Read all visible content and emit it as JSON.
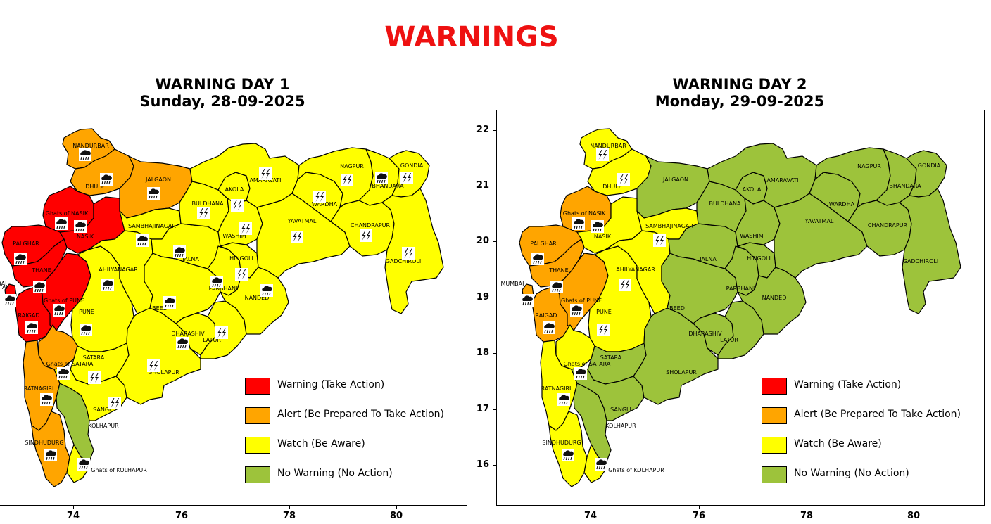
{
  "main_title": "WARNINGS",
  "colors": {
    "title": "#ee1111",
    "warning": "#ff0000",
    "alert": "#ffa500",
    "watch": "#ffff00",
    "no_warning": "#9dc33b"
  },
  "legend": [
    {
      "label": "Warning (Take Action)",
      "color_key": "warning"
    },
    {
      "label": "Alert (Be Prepared To Take Action)",
      "color_key": "alert"
    },
    {
      "label": "Watch (Be Aware)",
      "color_key": "watch"
    },
    {
      "label": "No Warning (No Action)",
      "color_key": "no_warning"
    }
  ],
  "panels": [
    {
      "title_line1": "WARNING DAY 1",
      "title_line2": "Sunday, 28-09-2025",
      "x_ticks": [
        "74",
        "76",
        "78",
        "80"
      ],
      "y_ticks": [],
      "clipped_label": "AI",
      "districts": [
        {
          "name": "NANDURBAR",
          "level": "alert",
          "icon": "rain"
        },
        {
          "name": "DHULE",
          "level": "alert",
          "icon": "rain"
        },
        {
          "name": "JALGAON",
          "level": "alert",
          "icon": "rain"
        },
        {
          "name": "Ghats of NASIK",
          "level": "warning",
          "icon": "rain"
        },
        {
          "name": "NASIK",
          "level": "warning",
          "icon": "rain"
        },
        {
          "name": "PALGHAR",
          "level": "warning",
          "icon": "rain"
        },
        {
          "name": "THANE",
          "level": "warning",
          "icon": "rain"
        },
        {
          "name": "MUMBAI",
          "level": "warning",
          "icon": "rain"
        },
        {
          "name": "RAIGAD",
          "level": "warning",
          "icon": "rain"
        },
        {
          "name": "Ghats of PUNE",
          "level": "warning",
          "icon": "rain"
        },
        {
          "name": "PUNE",
          "level": "watch",
          "icon": "rain"
        },
        {
          "name": "Ghats of SATARA",
          "level": "alert",
          "icon": "rain"
        },
        {
          "name": "SATARA",
          "level": "watch",
          "icon": "thunder"
        },
        {
          "name": "RATNAGIRI",
          "level": "alert",
          "icon": "rain"
        },
        {
          "name": "SINDHUDURG",
          "level": "alert",
          "icon": "rain"
        },
        {
          "name": "KOLHAPUR",
          "level": "no_warning",
          "icon": ""
        },
        {
          "name": "Ghats of KOLHAPUR",
          "level": "watch",
          "icon": "rain"
        },
        {
          "name": "SANGLI",
          "level": "watch",
          "icon": "thunder"
        },
        {
          "name": "SHOLAPUR",
          "level": "watch",
          "icon": "thunder"
        },
        {
          "name": "AHILYANAGAR",
          "level": "watch",
          "icon": "rain"
        },
        {
          "name": "SAMBHAJINAGAR",
          "level": "watch",
          "icon": "rain"
        },
        {
          "name": "BEED",
          "level": "watch",
          "icon": "rain"
        },
        {
          "name": "DHARASHIV",
          "level": "watch",
          "icon": "rain"
        },
        {
          "name": "LATUR",
          "level": "watch",
          "icon": "thunder"
        },
        {
          "name": "JALNA",
          "level": "watch",
          "icon": "rain"
        },
        {
          "name": "PARBHANI",
          "level": "watch",
          "icon": "rain"
        },
        {
          "name": "HINGOLI",
          "level": "watch",
          "icon": "thunder"
        },
        {
          "name": "NANDED",
          "level": "watch",
          "icon": "rain"
        },
        {
          "name": "BULDHANA",
          "level": "watch",
          "icon": "thunder"
        },
        {
          "name": "AKOLA",
          "level": "watch",
          "icon": "thunder"
        },
        {
          "name": "WASHIM",
          "level": "watch",
          "icon": "thunder"
        },
        {
          "name": "AMARAVATI",
          "level": "watch",
          "icon": "thunder"
        },
        {
          "name": "YAVATMAL",
          "level": "watch",
          "icon": "thunder"
        },
        {
          "name": "WARDHA",
          "level": "watch",
          "icon": "thunder"
        },
        {
          "name": "NAGPUR",
          "level": "watch",
          "icon": "thunder"
        },
        {
          "name": "BHANDARA",
          "level": "watch",
          "icon": "rain"
        },
        {
          "name": "GONDIA",
          "level": "watch",
          "icon": "thunder"
        },
        {
          "name": "CHANDRAPUR",
          "level": "watch",
          "icon": "thunder"
        },
        {
          "name": "GADCHIROLI",
          "level": "watch",
          "icon": "thunder"
        }
      ]
    },
    {
      "title_line1": "WARNING DAY 2",
      "title_line2": "Monday, 29-09-2025",
      "x_ticks": [
        "74",
        "76",
        "78",
        "80"
      ],
      "y_ticks": [
        "22",
        "21",
        "20",
        "19",
        "18",
        "17",
        "16"
      ],
      "clipped_label": "",
      "districts": [
        {
          "name": "NANDURBAR",
          "level": "watch",
          "icon": "thunder"
        },
        {
          "name": "DHULE",
          "level": "watch",
          "icon": "thunder"
        },
        {
          "name": "JALGAON",
          "level": "no_warning",
          "icon": ""
        },
        {
          "name": "Ghats of NASIK",
          "level": "alert",
          "icon": "rain"
        },
        {
          "name": "NASIK",
          "level": "watch",
          "icon": "rain"
        },
        {
          "name": "PALGHAR",
          "level": "alert",
          "icon": "rain"
        },
        {
          "name": "THANE",
          "level": "alert",
          "icon": "rain"
        },
        {
          "name": "MUMBAI",
          "level": "alert",
          "icon": "rain"
        },
        {
          "name": "RAIGAD",
          "level": "alert",
          "icon": "rain"
        },
        {
          "name": "Ghats of PUNE",
          "level": "alert",
          "icon": "rain"
        },
        {
          "name": "PUNE",
          "level": "watch",
          "icon": "thunder"
        },
        {
          "name": "Ghats of SATARA",
          "level": "watch",
          "icon": "rain"
        },
        {
          "name": "SATARA",
          "level": "no_warning",
          "icon": ""
        },
        {
          "name": "RATNAGIRI",
          "level": "watch",
          "icon": "rain"
        },
        {
          "name": "SINDHUDURG",
          "level": "watch",
          "icon": "rain"
        },
        {
          "name": "KOLHAPUR",
          "level": "no_warning",
          "icon": ""
        },
        {
          "name": "Ghats of KOLHAPUR",
          "level": "watch",
          "icon": "rain"
        },
        {
          "name": "SANGLI",
          "level": "no_warning",
          "icon": ""
        },
        {
          "name": "SHOLAPUR",
          "level": "no_warning",
          "icon": ""
        },
        {
          "name": "AHILYANAGAR",
          "level": "watch",
          "icon": "thunder"
        },
        {
          "name": "SAMBHAJINAGAR",
          "level": "watch",
          "icon": "thunder"
        },
        {
          "name": "BEED",
          "level": "no_warning",
          "icon": ""
        },
        {
          "name": "DHARASHIV",
          "level": "no_warning",
          "icon": ""
        },
        {
          "name": "LATUR",
          "level": "no_warning",
          "icon": ""
        },
        {
          "name": "JALNA",
          "level": "no_warning",
          "icon": ""
        },
        {
          "name": "PARBHANI",
          "level": "no_warning",
          "icon": ""
        },
        {
          "name": "HINGOLI",
          "level": "no_warning",
          "icon": ""
        },
        {
          "name": "NANDED",
          "level": "no_warning",
          "icon": ""
        },
        {
          "name": "BULDHANA",
          "level": "no_warning",
          "icon": ""
        },
        {
          "name": "AKOLA",
          "level": "no_warning",
          "icon": ""
        },
        {
          "name": "WASHIM",
          "level": "no_warning",
          "icon": ""
        },
        {
          "name": "AMARAVATI",
          "level": "no_warning",
          "icon": ""
        },
        {
          "name": "YAVATMAL",
          "level": "no_warning",
          "icon": ""
        },
        {
          "name": "WARDHA",
          "level": "no_warning",
          "icon": ""
        },
        {
          "name": "NAGPUR",
          "level": "no_warning",
          "icon": ""
        },
        {
          "name": "BHANDARA",
          "level": "no_warning",
          "icon": ""
        },
        {
          "name": "GONDIA",
          "level": "no_warning",
          "icon": ""
        },
        {
          "name": "CHANDRAPUR",
          "level": "no_warning",
          "icon": ""
        },
        {
          "name": "GADCHIROLI",
          "level": "no_warning",
          "icon": ""
        }
      ]
    }
  ]
}
